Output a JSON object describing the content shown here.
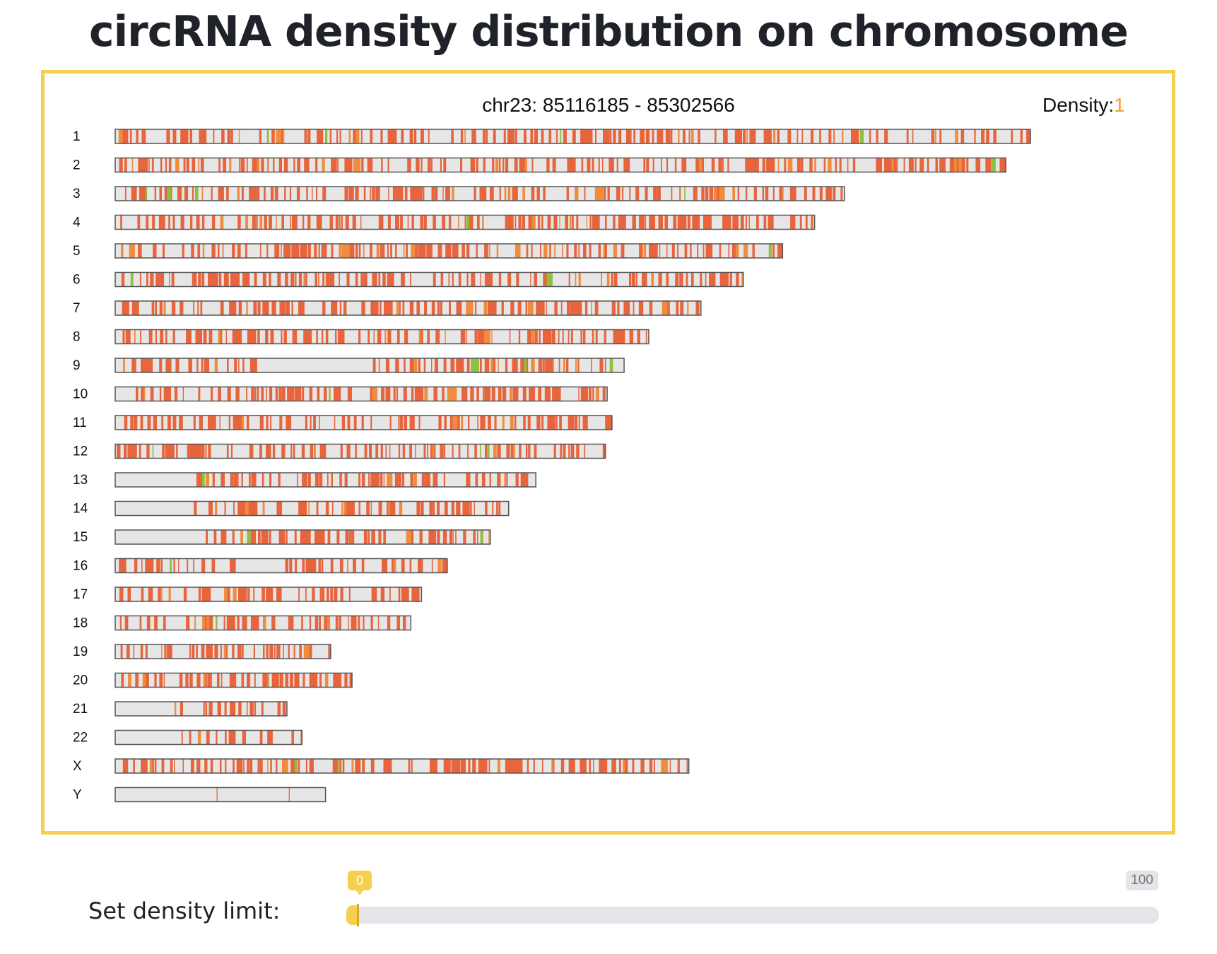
{
  "page": {
    "title": "circRNA density distribution on chromosome"
  },
  "header": {
    "range_text": "chr23: 85116185 - 85302566",
    "density_label": "Density:",
    "density_value": "1"
  },
  "colors": {
    "border": "#f6cf4f",
    "chromosome_fill": "#e6e6e6",
    "chromosome_stroke": "#555555",
    "band_main": "#e8643c",
    "band_alt": "#f08c3c",
    "band_rare": "#8fbf3f",
    "accent": "#f6cf4f"
  },
  "slider": {
    "label": "Set density limit:",
    "min_label": "0",
    "max_label": "100",
    "value": 0,
    "max": 100
  },
  "chart_data": {
    "type": "heatmap",
    "title": "circRNA density distribution on chromosome",
    "chromosomes": [
      {
        "name": "1",
        "length": 248.9,
        "empty": [
          [
            145,
            145.5
          ]
        ]
      },
      {
        "name": "2",
        "length": 242.2,
        "empty": []
      },
      {
        "name": "3",
        "length": 198.3,
        "empty": []
      },
      {
        "name": "4",
        "length": 190.2,
        "empty": []
      },
      {
        "name": "5",
        "length": 181.5,
        "empty": []
      },
      {
        "name": "6",
        "length": 170.8,
        "empty": []
      },
      {
        "name": "7",
        "length": 159.3,
        "empty": []
      },
      {
        "name": "8",
        "length": 145.1,
        "empty": []
      },
      {
        "name": "9",
        "length": 138.4,
        "empty": [
          [
            40,
            69
          ]
        ]
      },
      {
        "name": "10",
        "length": 133.8,
        "empty": []
      },
      {
        "name": "11",
        "length": 135.1,
        "empty": []
      },
      {
        "name": "12",
        "length": 133.3,
        "empty": []
      },
      {
        "name": "13",
        "length": 114.4,
        "empty": [
          [
            0,
            19.5
          ]
        ]
      },
      {
        "name": "14",
        "length": 107.0,
        "empty": [
          [
            0,
            20.5
          ]
        ]
      },
      {
        "name": "15",
        "length": 102.0,
        "empty": [
          [
            0,
            23
          ]
        ]
      },
      {
        "name": "16",
        "length": 90.3,
        "empty": [
          [
            32,
            46
          ]
        ]
      },
      {
        "name": "17",
        "length": 83.3,
        "empty": []
      },
      {
        "name": "18",
        "length": 80.4,
        "empty": []
      },
      {
        "name": "19",
        "length": 58.6,
        "empty": []
      },
      {
        "name": "20",
        "length": 64.4,
        "empty": []
      },
      {
        "name": "21",
        "length": 46.7,
        "empty": [
          [
            0,
            16
          ]
        ]
      },
      {
        "name": "22",
        "length": 50.8,
        "empty": [
          [
            0,
            17
          ]
        ]
      },
      {
        "name": "X",
        "length": 156.0,
        "empty": []
      },
      {
        "name": "Y",
        "length": 57.2,
        "empty": []
      }
    ],
    "density_limit": 0,
    "density_range": [
      0,
      100
    ]
  }
}
